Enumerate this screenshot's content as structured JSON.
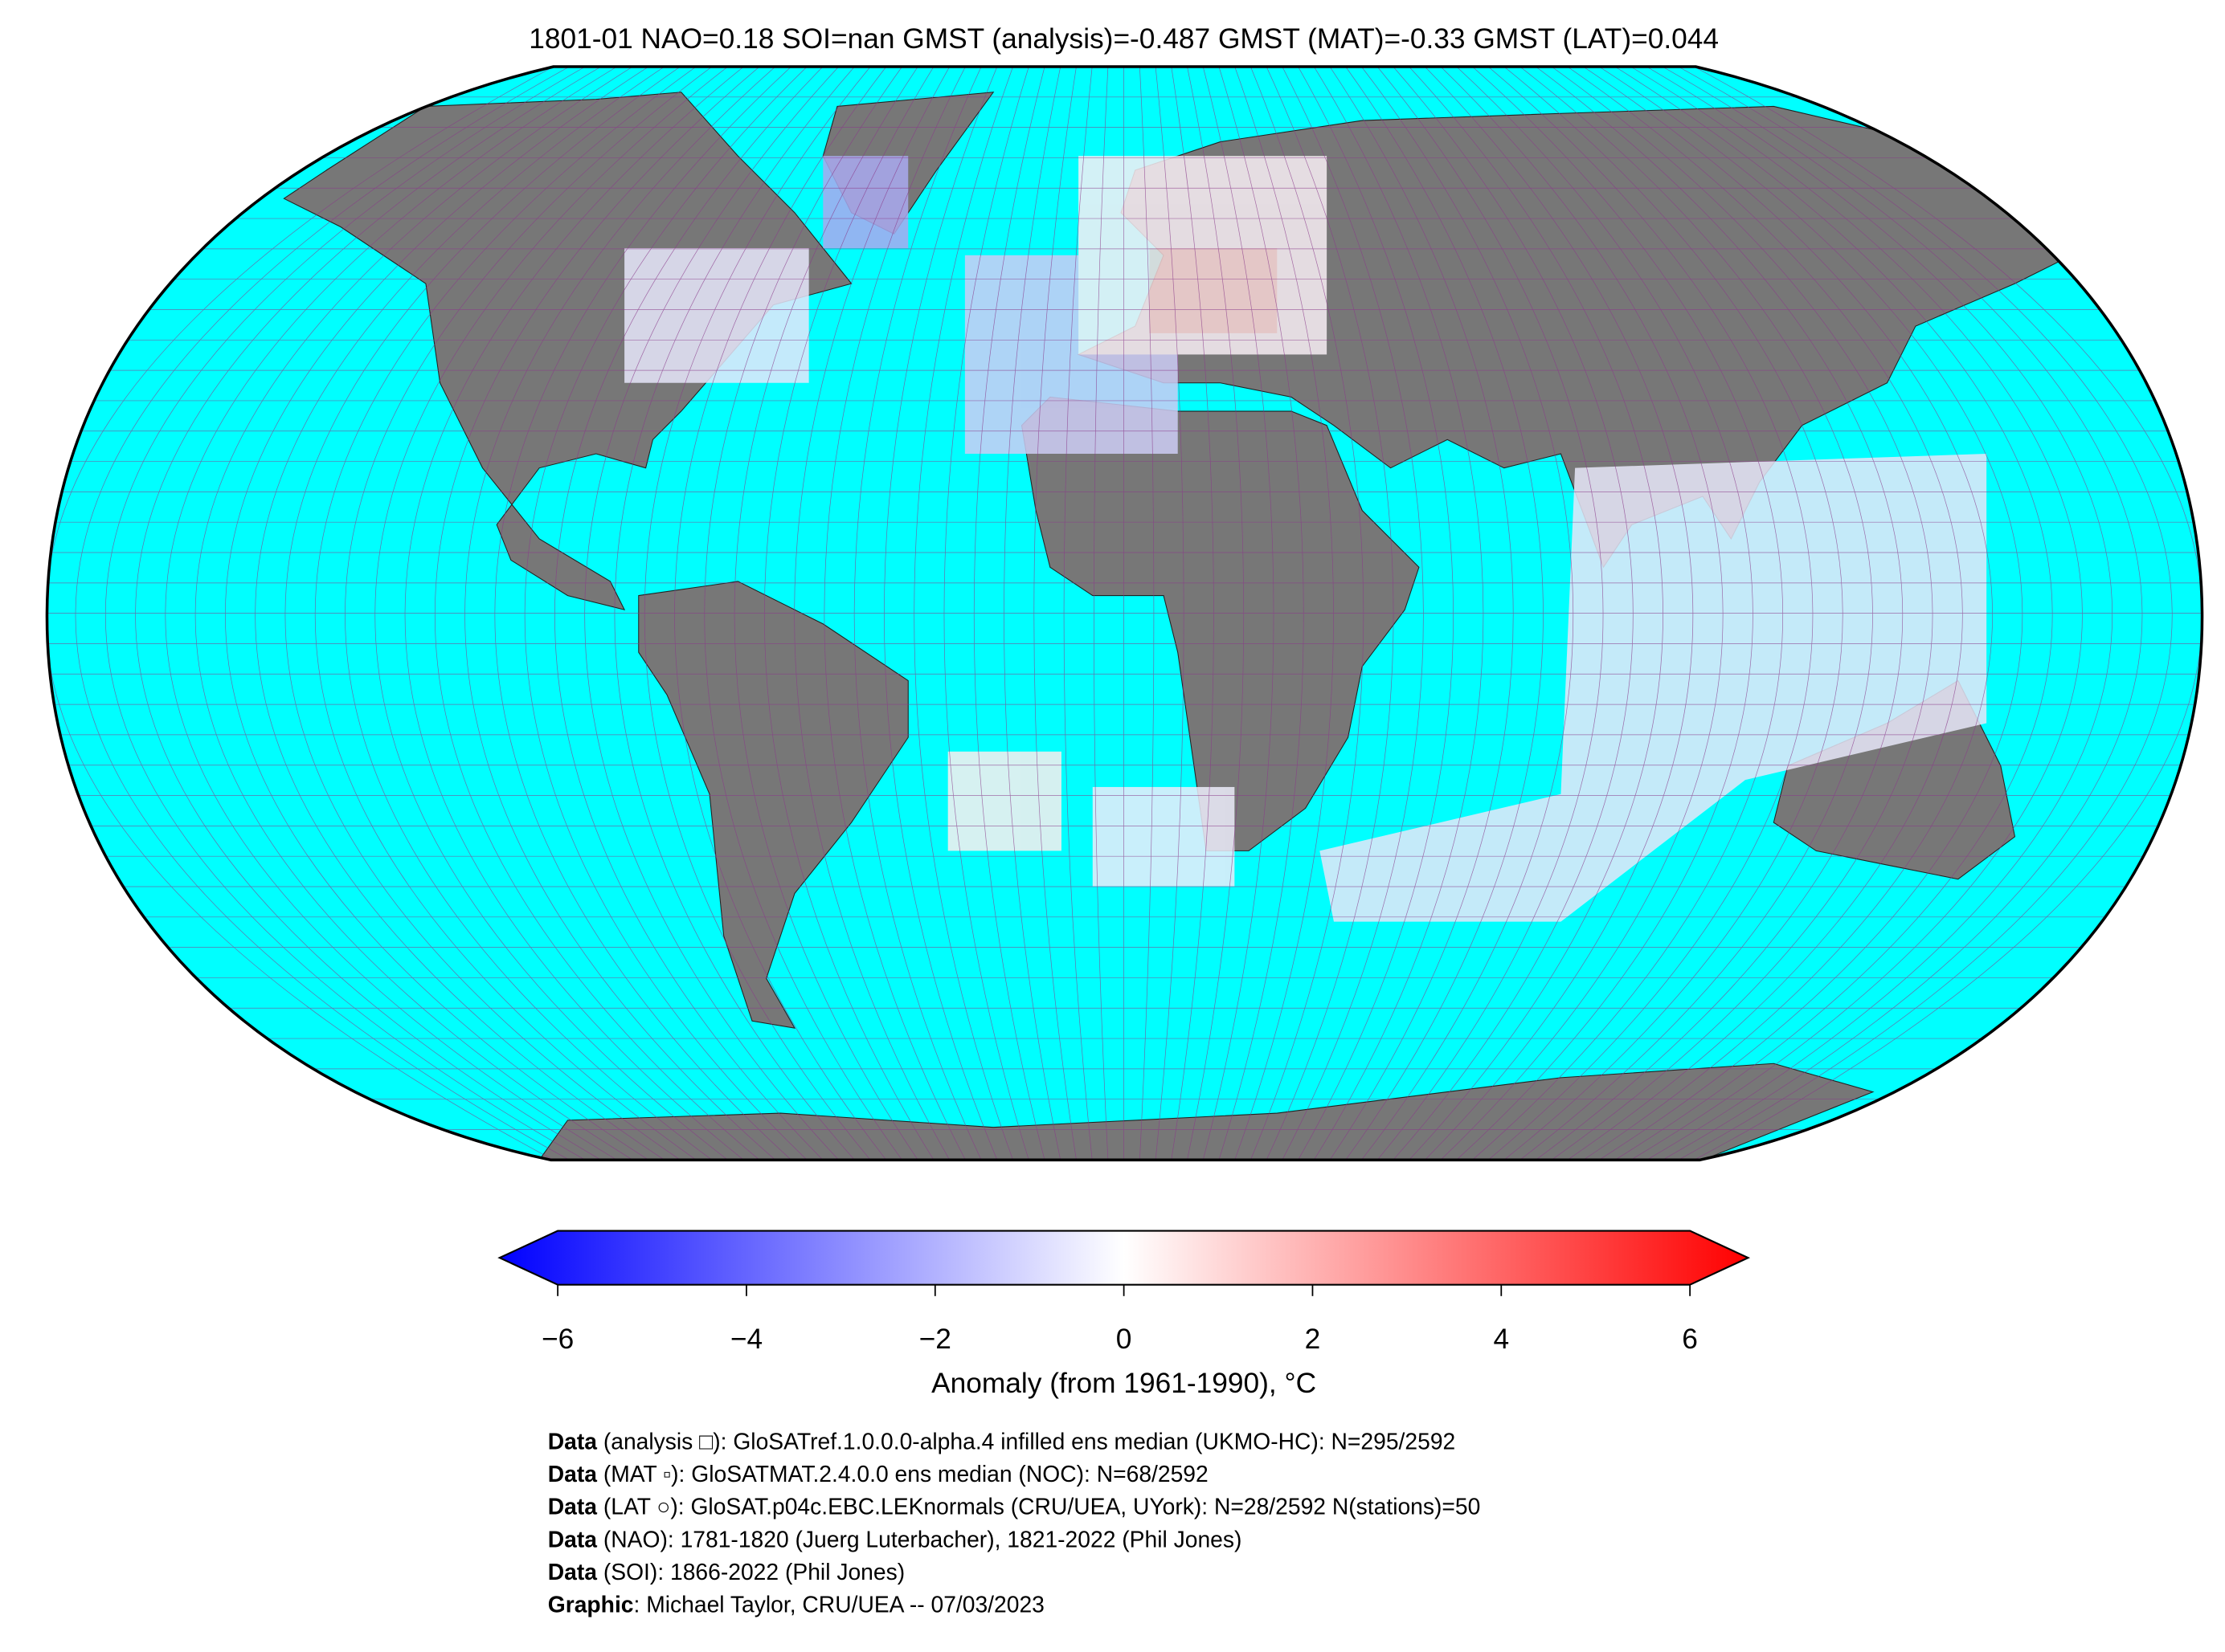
{
  "title": "1801-01 NAO=0.18 SOI=nan GMST (analysis)=-0.487 GMST (MAT)=-0.33 GMST (LAT)=0.044",
  "colorbar": {
    "label": "Anomaly (from 1961-1990), °C",
    "lim": [
      -6,
      6
    ],
    "ticks": [
      {
        "value": -6,
        "label": "−6"
      },
      {
        "value": -4,
        "label": "−4"
      },
      {
        "value": -2,
        "label": "−2"
      },
      0,
      2,
      4,
      6
    ]
  },
  "credits": [
    {
      "bold": "Data",
      "text": " (analysis □): GloSATref.1.0.0.0-alpha.4 infilled ens median (UKMO-HC): N=295/2592"
    },
    {
      "bold": "Data",
      "text": " (MAT ▫): GloSATMAT.2.4.0.0 ens median (NOC): N=68/2592"
    },
    {
      "bold": "Data",
      "text": " (LAT ○): GloSAT.p04c.EBC.LEKnormals (CRU/UEA, UYork): N=28/2592 N(stations)=50"
    },
    {
      "bold": "Data",
      "text": " (NAO): 1781-1820 (Juerg Luterbacher), 1821-2022 (Phil Jones)"
    },
    {
      "bold": "Data",
      "text": " (SOI): 1866-2022 (Phil Jones)"
    },
    {
      "bold": "Graphic",
      "text": ": Michael Taylor, CRU/UEA -- 07/03/2023"
    }
  ]
}
